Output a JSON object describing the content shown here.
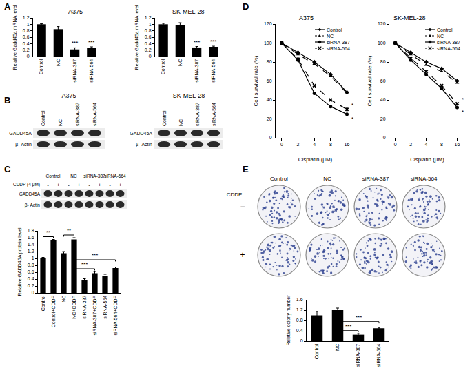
{
  "panel_labels": [
    "A",
    "B",
    "C",
    "D",
    "E"
  ],
  "blots": [
    {
      "title": "A375",
      "lanes": [
        "Control",
        "NC",
        "siRNA-387",
        "siRNA-564"
      ],
      "rows": [
        "GADD45A",
        "β- Actin"
      ]
    },
    {
      "title": "SK-MEL-28",
      "lanes": [
        "Control",
        "NC",
        "siRNA-387",
        "siRNA-564"
      ],
      "rows": [
        "GADD45A",
        "β- Actin"
      ]
    },
    {
      "lanes": [
        "Control",
        "NC",
        "siRNA-387",
        "siRNA-564"
      ],
      "treatment": "CDDP (4 μM)",
      "treatment_marks": [
        "-",
        "+",
        "-",
        "+",
        "-",
        "+",
        "-",
        "+"
      ],
      "rows": [
        "GADD45A",
        "β- Actin"
      ]
    }
  ],
  "plates": {
    "treatment": "CDDP",
    "columns": [
      "Control",
      "NC",
      "siRNA-387",
      "siRNA-564"
    ],
    "rows": [
      "−",
      "+"
    ]
  },
  "chart_data": [
    {
      "type": "bar",
      "title": "A375",
      "y_label": "Relative Gadd45a mRNA level",
      "categories": [
        "Control",
        "NC",
        "siRNA-387",
        "siRNA-564"
      ],
      "values": [
        1.0,
        0.85,
        0.22,
        0.27
      ],
      "errors": [
        0.02,
        0.08,
        0.05,
        0.03
      ],
      "color": "#000000",
      "ylim": [
        0,
        1.2
      ],
      "yticks": [
        0,
        0.2,
        0.4,
        0.6,
        0.8,
        1,
        1.2
      ],
      "grid": false,
      "annotations": [
        {
          "category": "siRNA-387",
          "text": "***"
        },
        {
          "category": "siRNA-564",
          "text": "***"
        }
      ]
    },
    {
      "type": "bar",
      "title": "SK-MEL-28",
      "y_label": "Relative Gadd45a mRNA level",
      "categories": [
        "Control",
        "NC",
        "siRNA-387",
        "siRNA-564"
      ],
      "values": [
        1.0,
        0.97,
        0.28,
        0.3
      ],
      "errors": [
        0.03,
        0.08,
        0.03,
        0.02
      ],
      "color": "#000000",
      "ylim": [
        0,
        1.2
      ],
      "yticks": [
        0,
        0.2,
        0.4,
        0.6,
        0.8,
        1,
        1.2
      ],
      "grid": false,
      "annotations": [
        {
          "category": "siRNA-387",
          "text": "***"
        },
        {
          "category": "siRNA-564",
          "text": "***"
        }
      ]
    },
    {
      "type": "bar",
      "y_label": "Relative GADD45A protein level",
      "categories": [
        "Control",
        "Control+CDDP",
        "NC",
        "NC+CDDP",
        "siRNA-387",
        "siRNA-387+CDDP",
        "siRNA-564",
        "siRNA-564+CDDP"
      ],
      "values": [
        1.0,
        1.52,
        1.15,
        1.55,
        0.38,
        0.57,
        0.5,
        0.72
      ],
      "errors": [
        0.03,
        0.03,
        0.05,
        0.05,
        0.03,
        0.05,
        0.04,
        0.03
      ],
      "color": "#000000",
      "ylim": [
        0,
        1.8
      ],
      "yticks": [
        0,
        0.2,
        0.4,
        0.6,
        0.8,
        1,
        1.2,
        1.4,
        1.6,
        1.8
      ],
      "grid": false,
      "brackets": [
        {
          "from": "Control",
          "to": "Control+CDDP",
          "text": "**"
        },
        {
          "from": "NC",
          "to": "NC+CDDP",
          "text": "**"
        },
        {
          "from": "NC+CDDP",
          "to": "siRNA-387+CDDP",
          "text": "***"
        },
        {
          "from": "NC+CDDP",
          "to": "siRNA-564+CDDP",
          "text": "***"
        }
      ]
    },
    {
      "type": "line",
      "title": "A375",
      "x_label": "Cisplatin (μM)",
      "y_label": "Cell survival rate (%)",
      "categories": [
        "0",
        "2",
        "4",
        "8",
        "16"
      ],
      "series": [
        {
          "name": "Control",
          "color": "#000000",
          "line_style": "solid",
          "marker": "diamond",
          "values": [
            100,
            90,
            80,
            67,
            48
          ]
        },
        {
          "name": "NC",
          "color": "#000000",
          "line_style": "dash",
          "marker": "triangle-up",
          "values": [
            100,
            88,
            78,
            65,
            47
          ]
        },
        {
          "name": "siRNA-387",
          "color": "#000000",
          "line_style": "solid",
          "marker": "circle",
          "values": [
            100,
            82,
            47,
            33,
            25
          ]
        },
        {
          "name": "siRNA-564",
          "color": "#000000",
          "line_style": "dash",
          "marker": "x",
          "values": [
            100,
            83,
            55,
            40,
            30
          ]
        }
      ],
      "ylim": [
        0,
        120
      ],
      "yticks": [
        0,
        20,
        40,
        60,
        80,
        100,
        120
      ],
      "legend": "upper right",
      "grid": false,
      "annotations": [
        {
          "series": "siRNA-387",
          "text": "*"
        },
        {
          "series": "siRNA-564",
          "text": "*"
        }
      ]
    },
    {
      "type": "line",
      "title": "SK-MEL-28",
      "x_label": "Cisplatin (μM)",
      "y_label": "Cell survival rate (%)",
      "categories": [
        "0",
        "2",
        "4",
        "8",
        "16"
      ],
      "series": [
        {
          "name": "Control",
          "color": "#000000",
          "line_style": "solid",
          "marker": "diamond",
          "values": [
            100,
            90,
            80,
            73,
            60
          ]
        },
        {
          "name": "NC",
          "color": "#000000",
          "line_style": "dash",
          "marker": "triangle-up",
          "values": [
            100,
            88,
            77,
            70,
            58
          ]
        },
        {
          "name": "siRNA-387",
          "color": "#000000",
          "line_style": "solid",
          "marker": "circle",
          "values": [
            100,
            82,
            67,
            52,
            32
          ]
        },
        {
          "name": "siRNA-564",
          "color": "#000000",
          "line_style": "dash",
          "marker": "x",
          "values": [
            100,
            84,
            70,
            55,
            36
          ]
        }
      ],
      "ylim": [
        0,
        120
      ],
      "yticks": [
        0,
        20,
        40,
        60,
        80,
        100,
        120
      ],
      "legend": "upper right",
      "grid": false,
      "annotations": [
        {
          "series": "siRNA-387",
          "text": "*"
        },
        {
          "series": "siRNA-564",
          "text": "*"
        }
      ]
    },
    {
      "type": "bar",
      "y_label": "Relative colony number",
      "categories": [
        "Control",
        "NC",
        "siRNA-387",
        "siRNA-564"
      ],
      "values": [
        1.0,
        1.2,
        0.25,
        0.5
      ],
      "errors": [
        0.15,
        0.08,
        0.05,
        0.03
      ],
      "color": "#000000",
      "ylim": [
        0,
        1.6
      ],
      "yticks": [
        0,
        0.4,
        0.8,
        1.2,
        1.6
      ],
      "grid": false,
      "brackets": [
        {
          "from": "NC",
          "to": "siRNA-387",
          "text": "***"
        },
        {
          "from": "NC",
          "to": "siRNA-564",
          "text": "***"
        }
      ]
    }
  ]
}
